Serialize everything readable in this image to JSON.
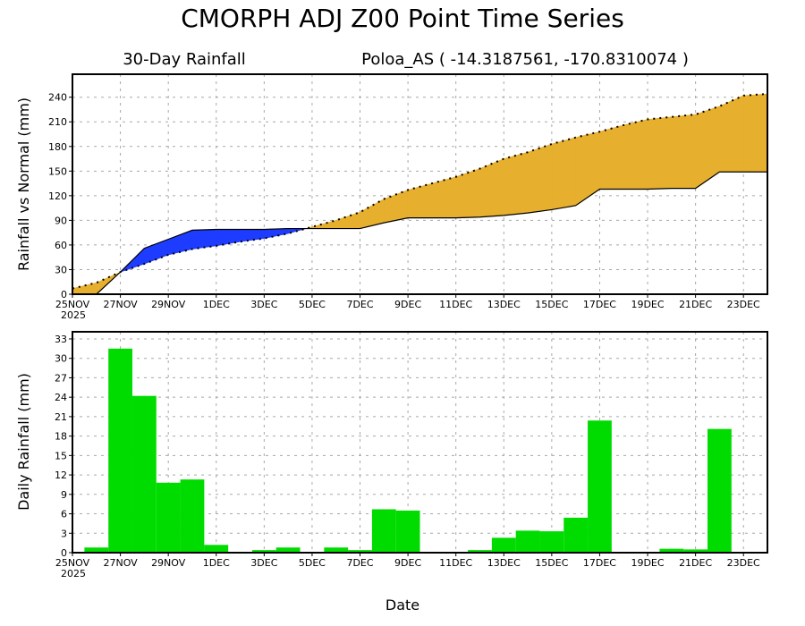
{
  "title": "CMORPH ADJ Z00 Point Time Series",
  "subtitle_left": "30-Day Rainfall",
  "subtitle_right": "Poloa_AS ( -14.3187561, -170.8310074 )",
  "colors": {
    "above_normal": "#1e3cff",
    "below_normal": "#e6af2d",
    "daily_bar": "#00dc00",
    "grid": "#a8a8a8"
  },
  "chart_data": [
    {
      "type": "area",
      "name": "cumulative",
      "ylabel": "Rainfall vs Normal (mm)",
      "xlabel": "",
      "ylim": [
        0,
        268
      ],
      "yticks": [
        0,
        30,
        60,
        90,
        120,
        150,
        180,
        210,
        240
      ],
      "grid": true,
      "xtick_labels": [
        "25NOV",
        "27NOV",
        "29NOV",
        "1DEC",
        "3DEC",
        "5DEC",
        "7DEC",
        "9DEC",
        "11DEC",
        "13DEC",
        "15DEC",
        "17DEC",
        "19DEC",
        "21DEC",
        "23DEC"
      ],
      "year_label": "2025",
      "x": [
        "25NOV",
        "26NOV",
        "27NOV",
        "28NOV",
        "29NOV",
        "30NOV",
        "1DEC",
        "2DEC",
        "3DEC",
        "4DEC",
        "5DEC",
        "6DEC",
        "7DEC",
        "8DEC",
        "9DEC",
        "10DEC",
        "11DEC",
        "12DEC",
        "13DEC",
        "14DEC",
        "15DEC",
        "16DEC",
        "17DEC",
        "18DEC",
        "19DEC",
        "20DEC",
        "21DEC",
        "22DEC",
        "23DEC",
        "24DEC"
      ],
      "series": [
        {
          "name": "Observed cumulative (solid)",
          "values": [
            0,
            0,
            27,
            56,
            67,
            78,
            79,
            79,
            79,
            80,
            80,
            80,
            80,
            87,
            93,
            93,
            93,
            94,
            96,
            99,
            103,
            108,
            128,
            128,
            128,
            129,
            129,
            149,
            149,
            149
          ]
        },
        {
          "name": "Normal (dotted)",
          "values": [
            7,
            14,
            27,
            37,
            48,
            55,
            59,
            64,
            68,
            74,
            82,
            90,
            100,
            116,
            127,
            135,
            143,
            153,
            165,
            173,
            183,
            191,
            198,
            206,
            213,
            216,
            219,
            229,
            242,
            244
          ]
        }
      ]
    },
    {
      "type": "bar",
      "name": "daily",
      "ylabel": "Daily Rainfall (mm)",
      "xlabel": "Date",
      "ylim": [
        0,
        34.1
      ],
      "yticks": [
        0,
        3,
        6,
        9,
        12,
        15,
        18,
        21,
        24,
        27,
        30,
        33
      ],
      "grid": true,
      "xtick_labels": [
        "25NOV",
        "27NOV",
        "29NOV",
        "1DEC",
        "3DEC",
        "5DEC",
        "7DEC",
        "9DEC",
        "11DEC",
        "13DEC",
        "15DEC",
        "17DEC",
        "19DEC",
        "21DEC",
        "23DEC"
      ],
      "year_label": "2025",
      "categories": [
        "25NOV",
        "26NOV",
        "27NOV",
        "28NOV",
        "29NOV",
        "30NOV",
        "1DEC",
        "2DEC",
        "3DEC",
        "4DEC",
        "5DEC",
        "6DEC",
        "7DEC",
        "8DEC",
        "9DEC",
        "10DEC",
        "11DEC",
        "12DEC",
        "13DEC",
        "14DEC",
        "15DEC",
        "16DEC",
        "17DEC",
        "18DEC",
        "19DEC",
        "20DEC",
        "21DEC",
        "22DEC",
        "23DEC",
        "24DEC"
      ],
      "values": [
        0,
        0.8,
        31.5,
        24.2,
        10.8,
        11.3,
        1.2,
        0.1,
        0.4,
        0.8,
        0.1,
        0.8,
        0.4,
        6.7,
        6.5,
        0.1,
        0.1,
        0.4,
        2.3,
        3.4,
        3.3,
        5.4,
        20.4,
        0.1,
        0.1,
        0.6,
        0.5,
        19.1,
        0,
        0
      ]
    }
  ]
}
